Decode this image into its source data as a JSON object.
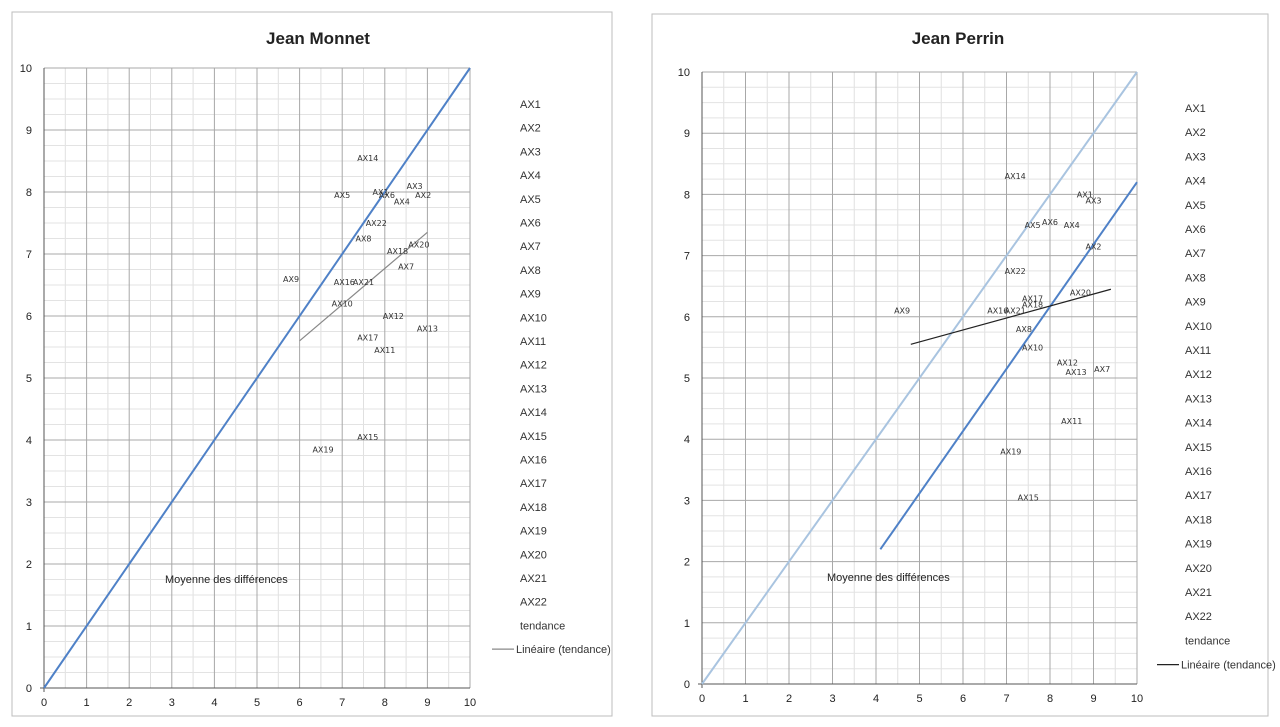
{
  "chart_data": [
    {
      "type": "scatter",
      "title": "Jean Monnet",
      "xlim": [
        0,
        10
      ],
      "ylim": [
        0,
        10
      ],
      "x_ticks": [
        "0",
        "1",
        "2",
        "3",
        "4",
        "5",
        "6",
        "7",
        "8",
        "9",
        "10"
      ],
      "y_ticks": [
        "0",
        "1",
        "2",
        "3",
        "4",
        "5",
        "6",
        "7",
        "8",
        "9",
        "10"
      ],
      "grid": true,
      "annotation": "Moyenne des différences",
      "points": [
        {
          "label": "AX1",
          "x": 7.9,
          "y": 8.0
        },
        {
          "label": "AX2",
          "x": 8.9,
          "y": 7.95
        },
        {
          "label": "AX3",
          "x": 8.7,
          "y": 8.1
        },
        {
          "label": "AX4",
          "x": 8.4,
          "y": 7.85
        },
        {
          "label": "AX5",
          "x": 7.0,
          "y": 7.95
        },
        {
          "label": "AX6",
          "x": 8.05,
          "y": 7.95
        },
        {
          "label": "AX7",
          "x": 8.5,
          "y": 6.8
        },
        {
          "label": "AX8",
          "x": 7.5,
          "y": 7.25
        },
        {
          "label": "AX9",
          "x": 5.8,
          "y": 6.6
        },
        {
          "label": "AX10",
          "x": 7.0,
          "y": 6.2
        },
        {
          "label": "AX11",
          "x": 8.0,
          "y": 5.45
        },
        {
          "label": "AX12",
          "x": 8.2,
          "y": 6.0
        },
        {
          "label": "AX13",
          "x": 9.0,
          "y": 5.8
        },
        {
          "label": "AX14",
          "x": 7.6,
          "y": 8.55
        },
        {
          "label": "AX15",
          "x": 7.6,
          "y": 4.05
        },
        {
          "label": "AX16",
          "x": 7.05,
          "y": 6.55
        },
        {
          "label": "AX17",
          "x": 7.6,
          "y": 5.65
        },
        {
          "label": "AX18",
          "x": 8.3,
          "y": 7.05
        },
        {
          "label": "AX19",
          "x": 6.55,
          "y": 3.85
        },
        {
          "label": "AX20",
          "x": 8.8,
          "y": 7.15
        },
        {
          "label": "AX21",
          "x": 7.5,
          "y": 6.55
        },
        {
          "label": "AX22",
          "x": 7.8,
          "y": 7.5
        }
      ],
      "reference_lines": [
        {
          "x": [
            0,
            10
          ],
          "y": [
            0,
            10
          ],
          "color": "#4f81c7"
        }
      ],
      "trend_line": {
        "x": [
          6.0,
          9.0
        ],
        "y": [
          5.6,
          7.35
        ],
        "color": "#888888"
      },
      "legend": {
        "placement": "right",
        "entries": [
          "AX1",
          "AX2",
          "AX3",
          "AX4",
          "AX5",
          "AX6",
          "AX7",
          "AX8",
          "AX9",
          "AX10",
          "AX11",
          "AX12",
          "AX13",
          "AX14",
          "AX15",
          "AX16",
          "AX17",
          "AX18",
          "AX19",
          "AX20",
          "AX21",
          "AX22",
          "tendance",
          "Linéaire (tendance)"
        ]
      }
    },
    {
      "type": "scatter",
      "title": "Jean Perrin",
      "xlim": [
        0,
        10
      ],
      "ylim": [
        0,
        10
      ],
      "x_ticks": [
        "0",
        "1",
        "2",
        "3",
        "4",
        "5",
        "6",
        "7",
        "8",
        "9",
        "10"
      ],
      "y_ticks": [
        "0",
        "1",
        "2",
        "3",
        "4",
        "5",
        "6",
        "7",
        "8",
        "9",
        "10"
      ],
      "grid": true,
      "annotation": "Moyenne des différences",
      "points": [
        {
          "label": "AX1",
          "x": 8.8,
          "y": 8.0
        },
        {
          "label": "AX2",
          "x": 9.0,
          "y": 7.15
        },
        {
          "label": "AX3",
          "x": 9.0,
          "y": 7.9
        },
        {
          "label": "AX4",
          "x": 8.5,
          "y": 7.5
        },
        {
          "label": "AX5",
          "x": 7.6,
          "y": 7.5
        },
        {
          "label": "AX6",
          "x": 8.0,
          "y": 7.55
        },
        {
          "label": "AX7",
          "x": 9.2,
          "y": 5.15
        },
        {
          "label": "AX8",
          "x": 7.4,
          "y": 5.8
        },
        {
          "label": "AX9",
          "x": 4.6,
          "y": 6.1
        },
        {
          "label": "AX10",
          "x": 7.6,
          "y": 5.5
        },
        {
          "label": "AX11",
          "x": 8.5,
          "y": 4.3
        },
        {
          "label": "AX12",
          "x": 8.4,
          "y": 5.25
        },
        {
          "label": "AX13",
          "x": 8.6,
          "y": 5.1
        },
        {
          "label": "AX14",
          "x": 7.2,
          "y": 8.3
        },
        {
          "label": "AX15",
          "x": 7.5,
          "y": 3.05
        },
        {
          "label": "AX16",
          "x": 6.8,
          "y": 6.1
        },
        {
          "label": "AX17",
          "x": 7.6,
          "y": 6.3
        },
        {
          "label": "AX18",
          "x": 7.6,
          "y": 6.2
        },
        {
          "label": "AX19",
          "x": 7.1,
          "y": 3.8
        },
        {
          "label": "AX20",
          "x": 8.7,
          "y": 6.4
        },
        {
          "label": "AX21",
          "x": 7.2,
          "y": 6.1
        },
        {
          "label": "AX22",
          "x": 7.2,
          "y": 6.75
        }
      ],
      "reference_lines": [
        {
          "x": [
            0,
            10
          ],
          "y": [
            0,
            10
          ],
          "color": "#a9c4e0"
        },
        {
          "x": [
            4.1,
            10
          ],
          "y": [
            2.2,
            8.2
          ],
          "color": "#4f81c7"
        }
      ],
      "trend_line": {
        "x": [
          4.8,
          9.4
        ],
        "y": [
          5.55,
          6.45
        ],
        "color": "#222222"
      },
      "legend": {
        "placement": "right",
        "entries": [
          "AX1",
          "AX2",
          "AX3",
          "AX4",
          "AX5",
          "AX6",
          "AX7",
          "AX8",
          "AX9",
          "AX10",
          "AX11",
          "AX12",
          "AX13",
          "AX14",
          "AX15",
          "AX16",
          "AX17",
          "AX18",
          "AX19",
          "AX20",
          "AX21",
          "AX22",
          "tendance",
          "Linéaire (tendance)"
        ]
      }
    }
  ]
}
